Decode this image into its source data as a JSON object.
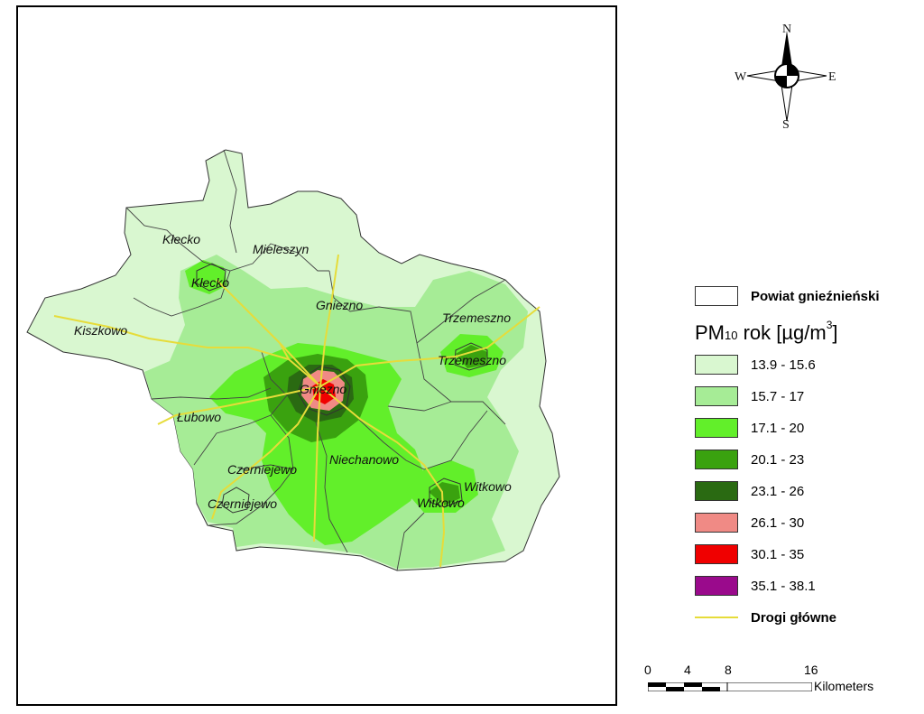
{
  "map": {
    "places": [
      {
        "id": "klecko-commune",
        "label": "Kłecko"
      },
      {
        "id": "klecko-town",
        "label": "Kłecko"
      },
      {
        "id": "mieleszyn",
        "label": "Mieleszyn"
      },
      {
        "id": "gniezno-commune",
        "label": "Gniezno"
      },
      {
        "id": "gniezno-city",
        "label": "Gniezno"
      },
      {
        "id": "kiszkowo",
        "label": "Kiszkowo"
      },
      {
        "id": "trzemeszno-commune",
        "label": "Trzemeszno"
      },
      {
        "id": "trzemeszno-town",
        "label": "Trzemeszno"
      },
      {
        "id": "lubowo",
        "label": "Łubowo"
      },
      {
        "id": "czerniejewo-commune",
        "label": "Czerniejewo"
      },
      {
        "id": "czerniejewo-town",
        "label": "Czerniejewo"
      },
      {
        "id": "niechanowo",
        "label": "Niechanowo"
      },
      {
        "id": "witkowo-commune",
        "label": "Witkowo"
      },
      {
        "id": "witkowo-town",
        "label": "Witkowo"
      }
    ]
  },
  "compass": {
    "n": "N",
    "s": "S",
    "e": "E",
    "w": "W"
  },
  "legend": {
    "boundary_label": "Powiat gnieźnieński",
    "pm_title": {
      "main": "PM",
      "sub": "10",
      "rest": " rok [µg/m",
      "sup": "3",
      "end": "]"
    },
    "classes": [
      {
        "label": "13.9 - 15.6",
        "color": "#d9f7d0"
      },
      {
        "label": "15.7 - 17",
        "color": "#a6ec96"
      },
      {
        "label": "17.1 - 20",
        "color": "#62ef2a"
      },
      {
        "label": "20.1 - 23",
        "color": "#3aa20f"
      },
      {
        "label": "23.1 - 26",
        "color": "#2a6a12"
      },
      {
        "label": "26.1 - 30",
        "color": "#f08a85"
      },
      {
        "label": "30.1 - 35",
        "color": "#f00000"
      },
      {
        "label": "35.1 - 38.1",
        "color": "#9a0a8c"
      }
    ],
    "roads_label": "Drogi główne",
    "roads_color": "#e6dc3a"
  },
  "scale": {
    "ticks": [
      "0",
      "4",
      "8",
      "16"
    ],
    "unit": "Kilometers"
  }
}
